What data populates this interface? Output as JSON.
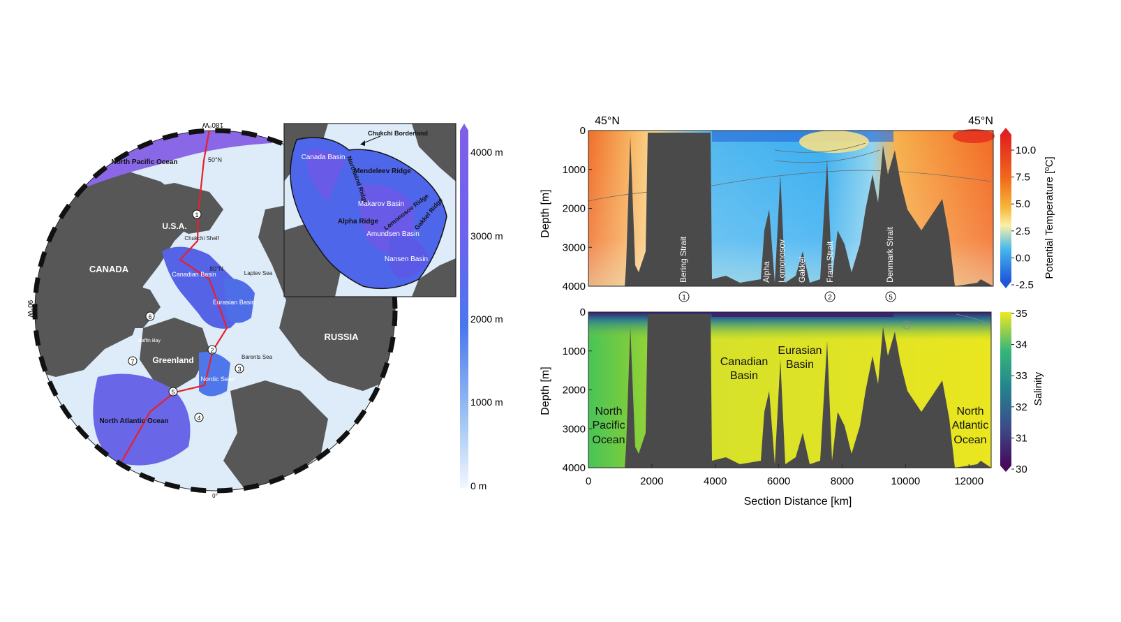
{
  "map": {
    "lon_labels": {
      "top": "180°W",
      "left": "90°W",
      "bottom": "0°"
    },
    "lat_labels": [
      "50°N",
      "80°N"
    ],
    "regions": {
      "north_pacific": "North Pacific Ocean",
      "usa": "U.S.A.",
      "canada": "CANADA",
      "russia": "RUSSIA",
      "greenland": "Greenland",
      "baffin": "Baffin Bay",
      "north_atlantic": "North Atlantic Ocean",
      "chukchi_shelf": "Chukchi Shelf",
      "canadian_basin": "Canadian Basin",
      "eurasian_basin": "Eurasian Basin",
      "laptev": "Laptev Sea",
      "barents": "Barents Sea",
      "nordic": "Nordic Seas"
    },
    "markers": [
      "1",
      "2",
      "3",
      "4",
      "5",
      "6",
      "7"
    ]
  },
  "inset": {
    "labels": {
      "chukchi_borderland": "Chukchi Borderland",
      "canada_basin": "Canada Basin",
      "northwind": "Northwind Ridge",
      "mendeleev": "Mendeleev Ridge",
      "makarov": "Makarov Basin",
      "alpha": "Alpha Ridge",
      "lomonosov": "Lomonosov Ridge",
      "gakkel": "Gakkel Ridge",
      "amundsen": "Amundsen Basin",
      "nansen": "Nansen Basin"
    }
  },
  "depth_colorbar": {
    "ticks": [
      "4000 m",
      "3000 m",
      "2000 m",
      "1000 m",
      "0 m"
    ]
  },
  "chart_data": [
    {
      "type": "heatmap",
      "variable": "temperature",
      "top_labels": [
        "45°N",
        "45°N"
      ],
      "ylabel": "Depth [m]",
      "ylim": [
        0,
        4000
      ],
      "y_ticks": [
        "0",
        "1000",
        "2000",
        "3000",
        "4000"
      ],
      "colorbar": {
        "label": "Potential Temperature [ºC]",
        "ticks": [
          "10.0",
          "7.5",
          "5.0",
          "2.5",
          "0.0",
          "-2.5"
        ]
      },
      "annotations": [
        "Bering Strait",
        "Alpha",
        "Lomonosov",
        "Gakkel",
        "Fram Strait",
        "Denmark Strait"
      ],
      "markers": [
        "1",
        "2",
        "5"
      ]
    },
    {
      "type": "heatmap",
      "variable": "salinity",
      "xlabel": "Section Distance [km]",
      "ylabel": "Depth  [m]",
      "xlim": [
        0,
        12700
      ],
      "x_ticks": [
        "0",
        "2000",
        "4000",
        "6000",
        "8000",
        "10000",
        "12000"
      ],
      "ylim": [
        0,
        4000
      ],
      "y_ticks": [
        "0",
        "1000",
        "2000",
        "3000",
        "4000"
      ],
      "colorbar": {
        "label": "Salinity",
        "ticks": [
          "35",
          "34",
          "33",
          "32",
          "31",
          "30"
        ]
      },
      "annotations": {
        "north_pacific": [
          "North",
          "Pacific",
          "Ocean"
        ],
        "canadian": [
          "Canadian",
          "Basin"
        ],
        "eurasian": [
          "Eurasian",
          "Basin"
        ],
        "north_atlantic": [
          "North",
          "Atlantic",
          "Ocean"
        ]
      }
    }
  ]
}
